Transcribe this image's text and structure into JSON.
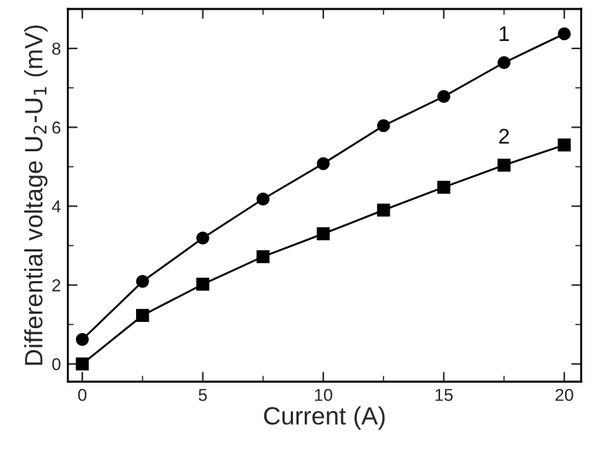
{
  "chart_data": {
    "type": "line",
    "xlabel": "Current (A)",
    "ylabel": "Differential voltage U$_{2}$-U$_{1}$ (mV)",
    "x": [
      0,
      2.5,
      5,
      7.5,
      10,
      12.5,
      15,
      17.5,
      20
    ],
    "series": [
      {
        "name": "1",
        "color": "#000000",
        "marker": "circle",
        "values": [
          0.62,
          2.09,
          3.19,
          4.18,
          5.08,
          6.04,
          6.78,
          7.64,
          8.37
        ]
      },
      {
        "name": "2",
        "color": "#000000",
        "marker": "square",
        "values": [
          0,
          1.23,
          2.02,
          2.72,
          3.3,
          3.9,
          4.48,
          5.04,
          5.55
        ]
      }
    ],
    "xlim": [
      -0.6,
      20.7
    ],
    "ylim": [
      -0.45,
      9.0
    ],
    "xticks": [
      0,
      5,
      10,
      15,
      20
    ],
    "yticks": [
      0,
      2,
      4,
      6,
      8
    ],
    "grid": false,
    "legend": false,
    "line_style": "solid"
  }
}
